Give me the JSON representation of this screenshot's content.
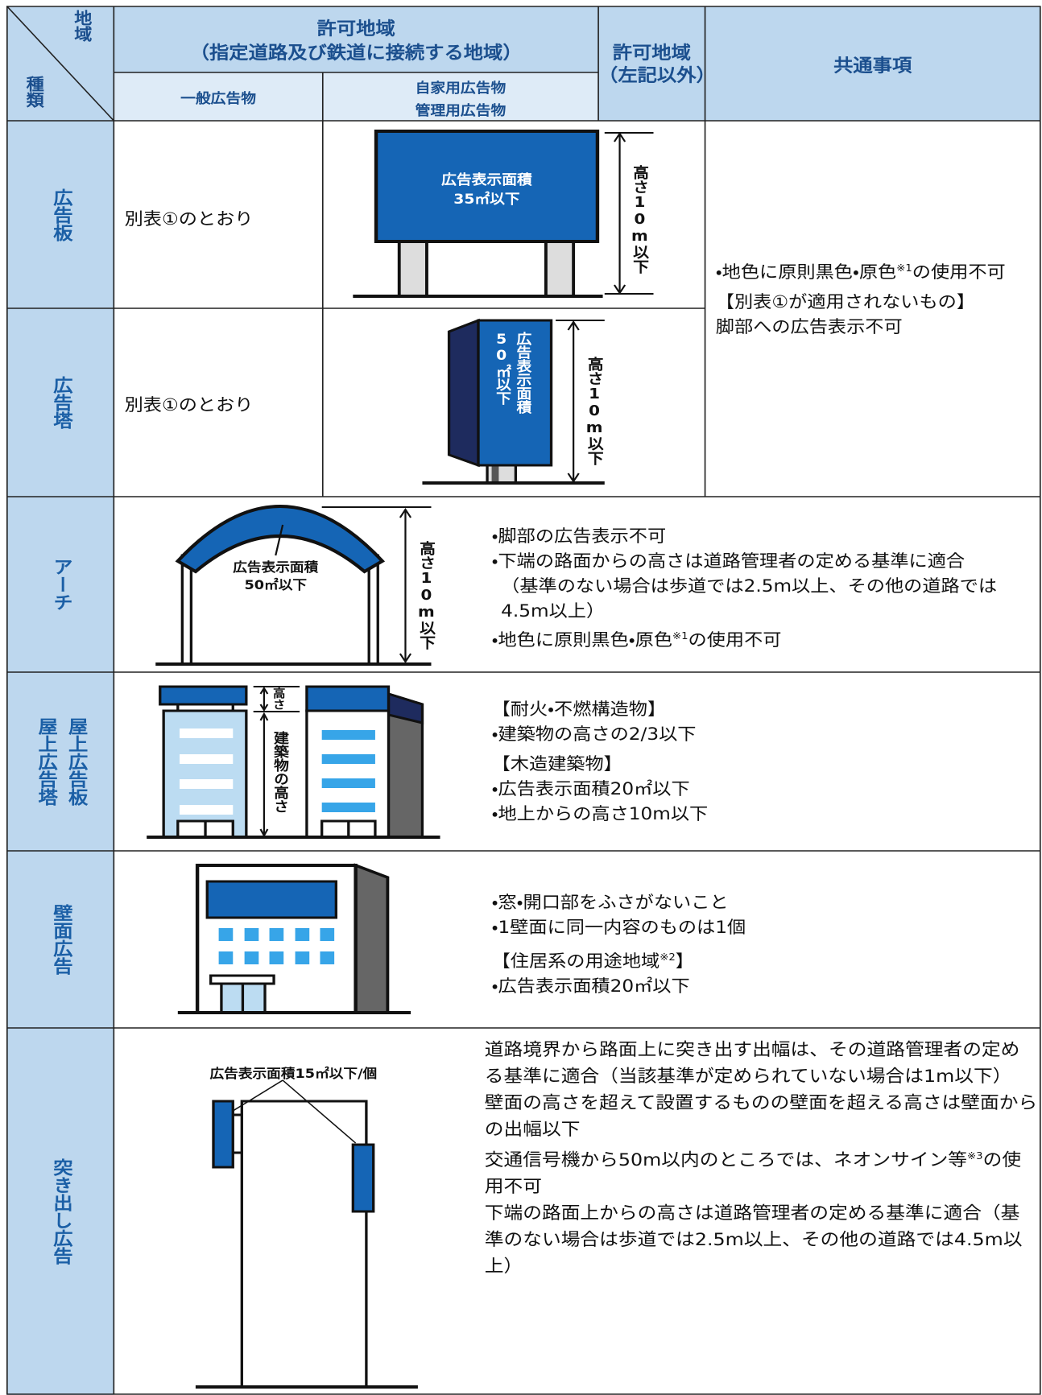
{
  "header": {
    "corner": {
      "top": "地域",
      "bottom": "種類"
    },
    "permit_zone": {
      "title": "許可地域",
      "subtitle": "（指定道路及び鉄道に接続する地域）",
      "general": "一般広告物",
      "own_use": [
        "自家用広告物",
        "管理用広告物"
      ]
    },
    "permit_other": [
      "許可地域",
      "（左記以外）"
    ],
    "common": "共通事項"
  },
  "rows": [
    {
      "label": [
        "広告板"
      ],
      "general": "別表①のとおり",
      "diagram": {
        "area": [
          "広告表示面積",
          "35㎡以下"
        ],
        "height": "高さ10m以下"
      }
    },
    {
      "label": [
        "広告塔"
      ],
      "general": "別表①のとおり",
      "diagram": {
        "area": [
          "広告表示面積",
          "50㎡以下"
        ],
        "height": "高さ10m以下"
      }
    },
    {
      "label": [
        "アーチ"
      ],
      "diagram": {
        "area": [
          "広告表示面積",
          "50㎡以下"
        ],
        "height": "高さ10m以下"
      },
      "notes": [
        [
          {
            "text": "・脚部の広告表示不可"
          }
        ],
        [
          {
            "text": "・下端の路面からの高さは道路管理者の定める基準に適合"
          }
        ],
        [
          {
            "text": "（基準のない場合は歩道では2.5m以上、その他の道路では4.5m以上）"
          }
        ],
        [
          {
            "text": "・地色に原則黒色・原色"
          },
          {
            "sup": "※1"
          },
          {
            "text": "の使用不可"
          }
        ]
      ]
    },
    {
      "label": [
        "屋上広告板",
        "屋上広告塔"
      ],
      "diagram": {
        "sign_height": "高さ",
        "building_height": "建築物の高さ"
      },
      "notes": [
        [
          {
            "text": "【耐火・不燃構造物】"
          }
        ],
        [
          {
            "text": "・建築物の高さの2/3以下"
          }
        ],
        [
          {
            "text": "【木造建築物】"
          }
        ],
        [
          {
            "text": "・広告表示面積20㎡以下"
          }
        ],
        [
          {
            "text": "・地上からの高さ10m以下"
          }
        ]
      ]
    },
    {
      "label": [
        "壁面広告"
      ],
      "notes": [
        [
          {
            "text": "・窓・開口部をふさがないこと"
          }
        ],
        [
          {
            "text": "・1壁面に同一内容のものは1個"
          }
        ],
        [
          {
            "text": "【住居系の用途地域"
          },
          {
            "sup": "※2"
          },
          {
            "text": "】"
          }
        ],
        [
          {
            "text": "・広告表示面積20㎡以下"
          }
        ]
      ]
    },
    {
      "label": [
        "突き出し広告"
      ],
      "diagram": {
        "area": "広告表示面積15㎡以下/個"
      },
      "notes": [
        [
          {
            "text": "道路境界から路面上に突き出す出幅は、その道路管理者の定める基準に適合（当該基準が定められていない場合は1m以下）"
          }
        ],
        [
          {
            "text": "壁面の高さを超えて設置するものの壁面を超える高さは壁面からの出幅以下"
          }
        ],
        [
          {
            "text": "交通信号機から50m以内のところでは、ネオンサイン等"
          },
          {
            "sup": "※3"
          },
          {
            "text": "の使用不可"
          }
        ],
        [
          {
            "text": "下端の路面上からの高さは道路管理者の定める基準に適合（基準のない場合は歩道では2.5m以上、その他の道路では4.5m以上）"
          }
        ]
      ]
    }
  ],
  "common_notes": [
    [
      {
        "text": "・地色に原則黒色・原色"
      },
      {
        "sup": "※1"
      },
      {
        "text": "の使用不可"
      }
    ],
    [
      {
        "text": "【別表①が適用されないもの】"
      }
    ],
    [
      {
        "text": "脚部への広告表示不可"
      }
    ]
  ]
}
